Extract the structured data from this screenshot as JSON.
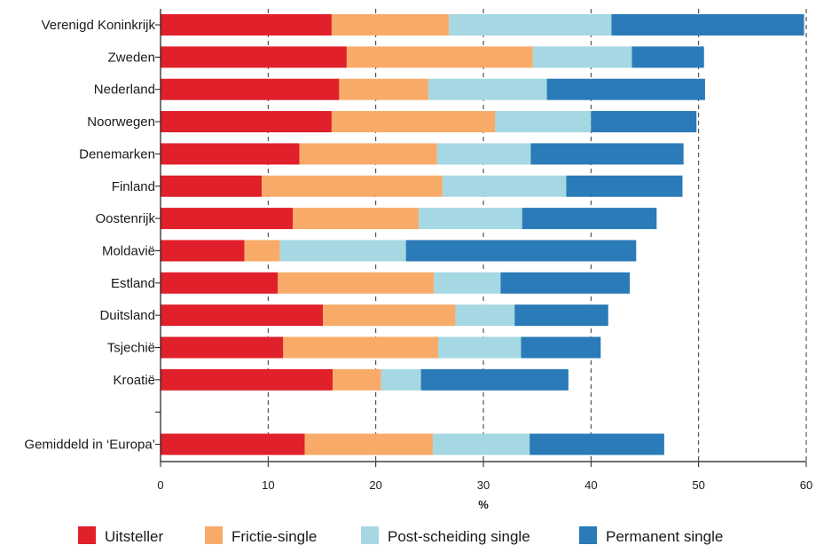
{
  "chart_data": {
    "type": "bar",
    "orientation": "horizontal",
    "stacked": true,
    "title": "",
    "xlabel": "%",
    "ylabel": "",
    "xlim": [
      0,
      60
    ],
    "xticks": [
      0,
      10,
      20,
      30,
      40,
      50,
      60
    ],
    "grid": "vertical dashed at 10, 20, 30, 40, 50",
    "legend_position": "bottom",
    "categories": [
      "Verenigd Koninkrijk",
      "Zweden",
      "Nederland",
      "Noorwegen",
      "Denemarken",
      "Finland",
      "Oostenrijk",
      "Moldavië",
      "Estland",
      "Duitsland",
      "Tsjechië",
      "Kroatië",
      "",
      "Gemiddeld in ‘Europa’"
    ],
    "series": [
      {
        "name": "Uitsteller",
        "color": "#e0202b",
        "values": [
          15.9,
          17.3,
          16.6,
          15.9,
          12.9,
          9.4,
          12.3,
          7.8,
          10.9,
          15.1,
          11.4,
          16.0,
          null,
          13.4
        ]
      },
      {
        "name": "Frictie-single",
        "color": "#f8ab68",
        "values": [
          10.9,
          17.3,
          8.3,
          15.2,
          12.8,
          16.8,
          11.7,
          3.3,
          14.5,
          12.3,
          14.4,
          4.5,
          null,
          11.9
        ]
      },
      {
        "name": "Post-scheiding single",
        "color": "#a5d8e3",
        "values": [
          15.1,
          9.2,
          11.0,
          8.9,
          8.7,
          11.5,
          9.6,
          11.7,
          6.2,
          5.5,
          7.7,
          3.7,
          null,
          9.0
        ]
      },
      {
        "name": "Permanent single",
        "color": "#2a7bb8",
        "values": [
          17.9,
          6.7,
          14.7,
          9.8,
          14.2,
          10.8,
          12.5,
          21.4,
          12.0,
          8.7,
          7.4,
          13.7,
          null,
          12.5
        ]
      }
    ]
  }
}
